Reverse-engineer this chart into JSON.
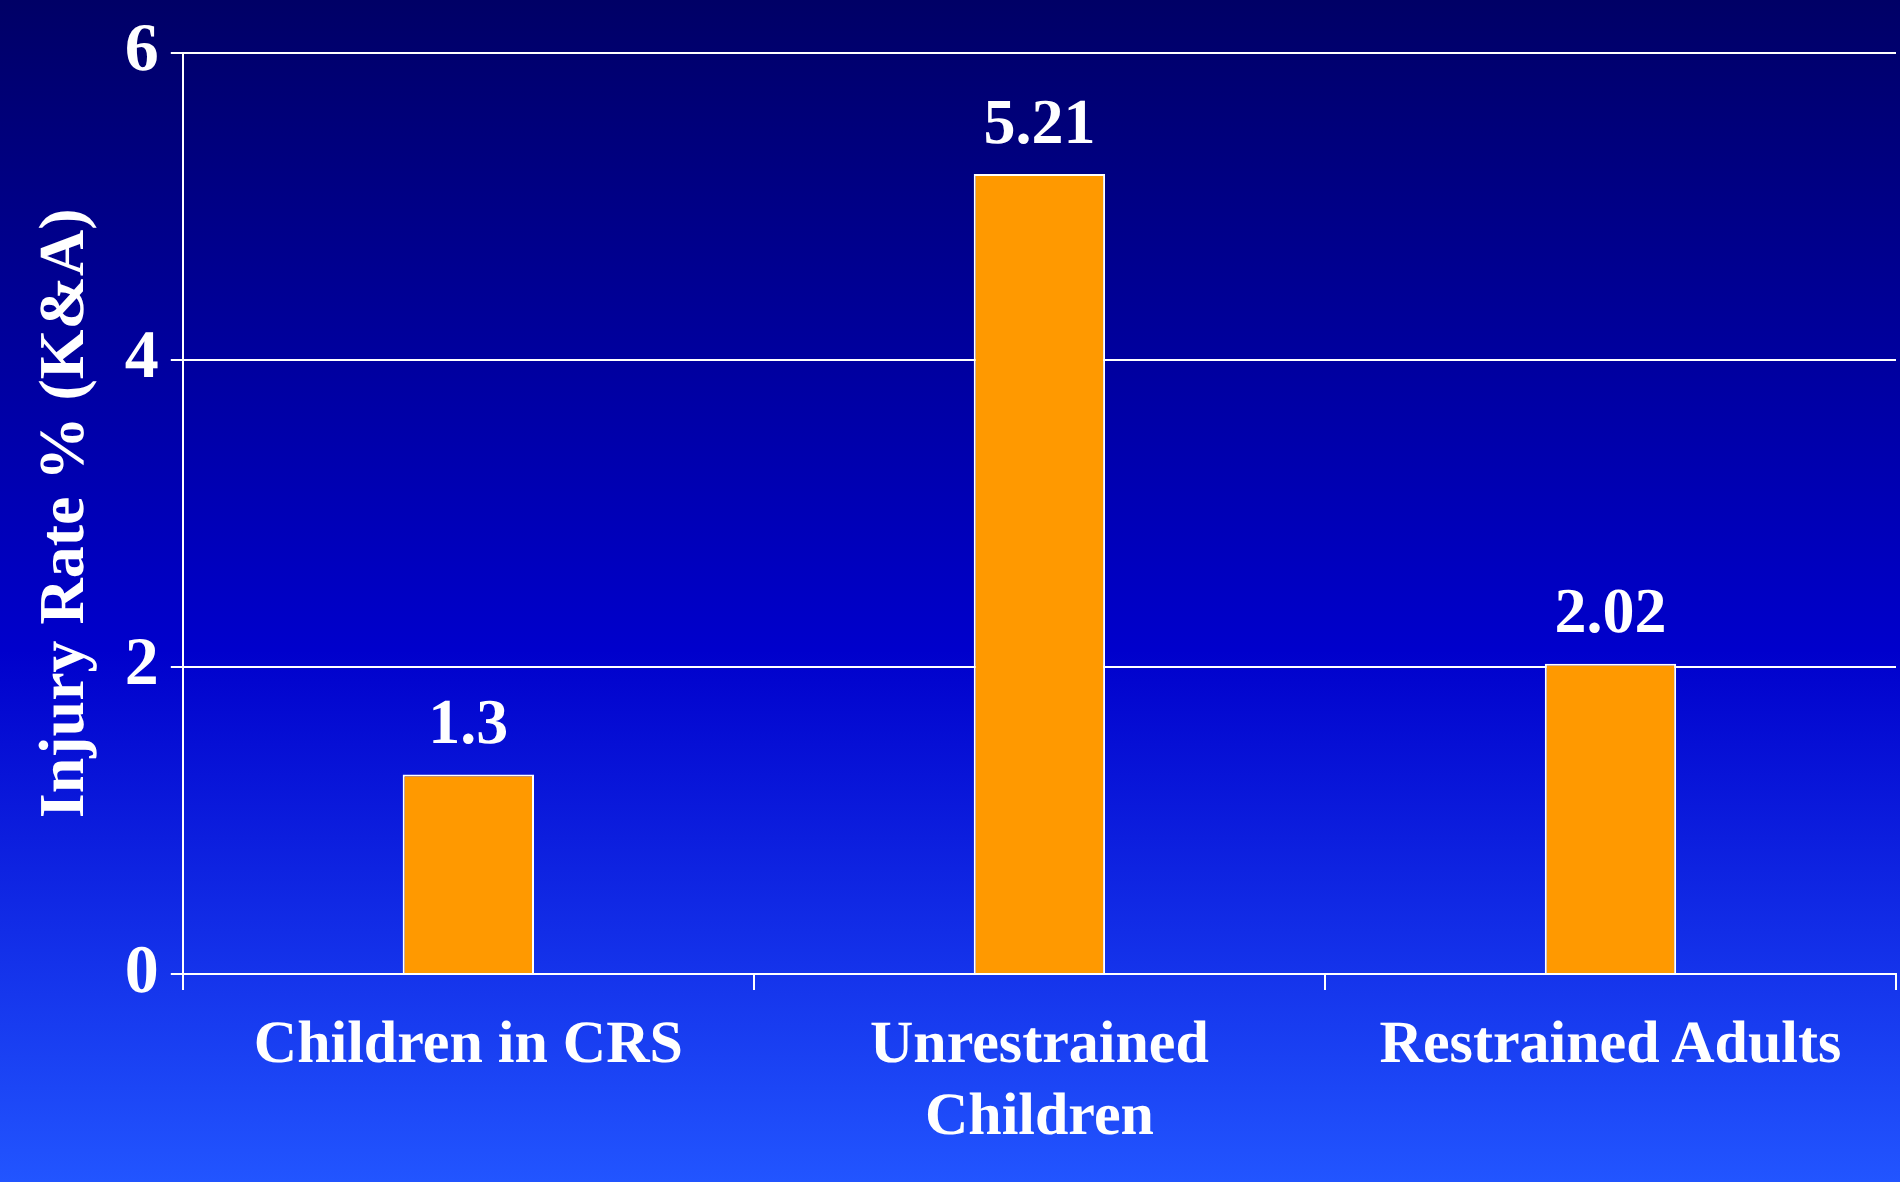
{
  "chart_data": {
    "type": "bar",
    "ylabel": "Injury Rate % (K&A)",
    "categories": [
      "Children in CRS",
      "Unrestrained Children",
      "Restrained Adults"
    ],
    "values": [
      1.3,
      5.21,
      2.02
    ],
    "color": "#ff9900",
    "ylim": [
      0,
      6
    ],
    "yticks": [
      0,
      2,
      4,
      6
    ],
    "grid": "y",
    "data_labels": true,
    "legend": false
  }
}
